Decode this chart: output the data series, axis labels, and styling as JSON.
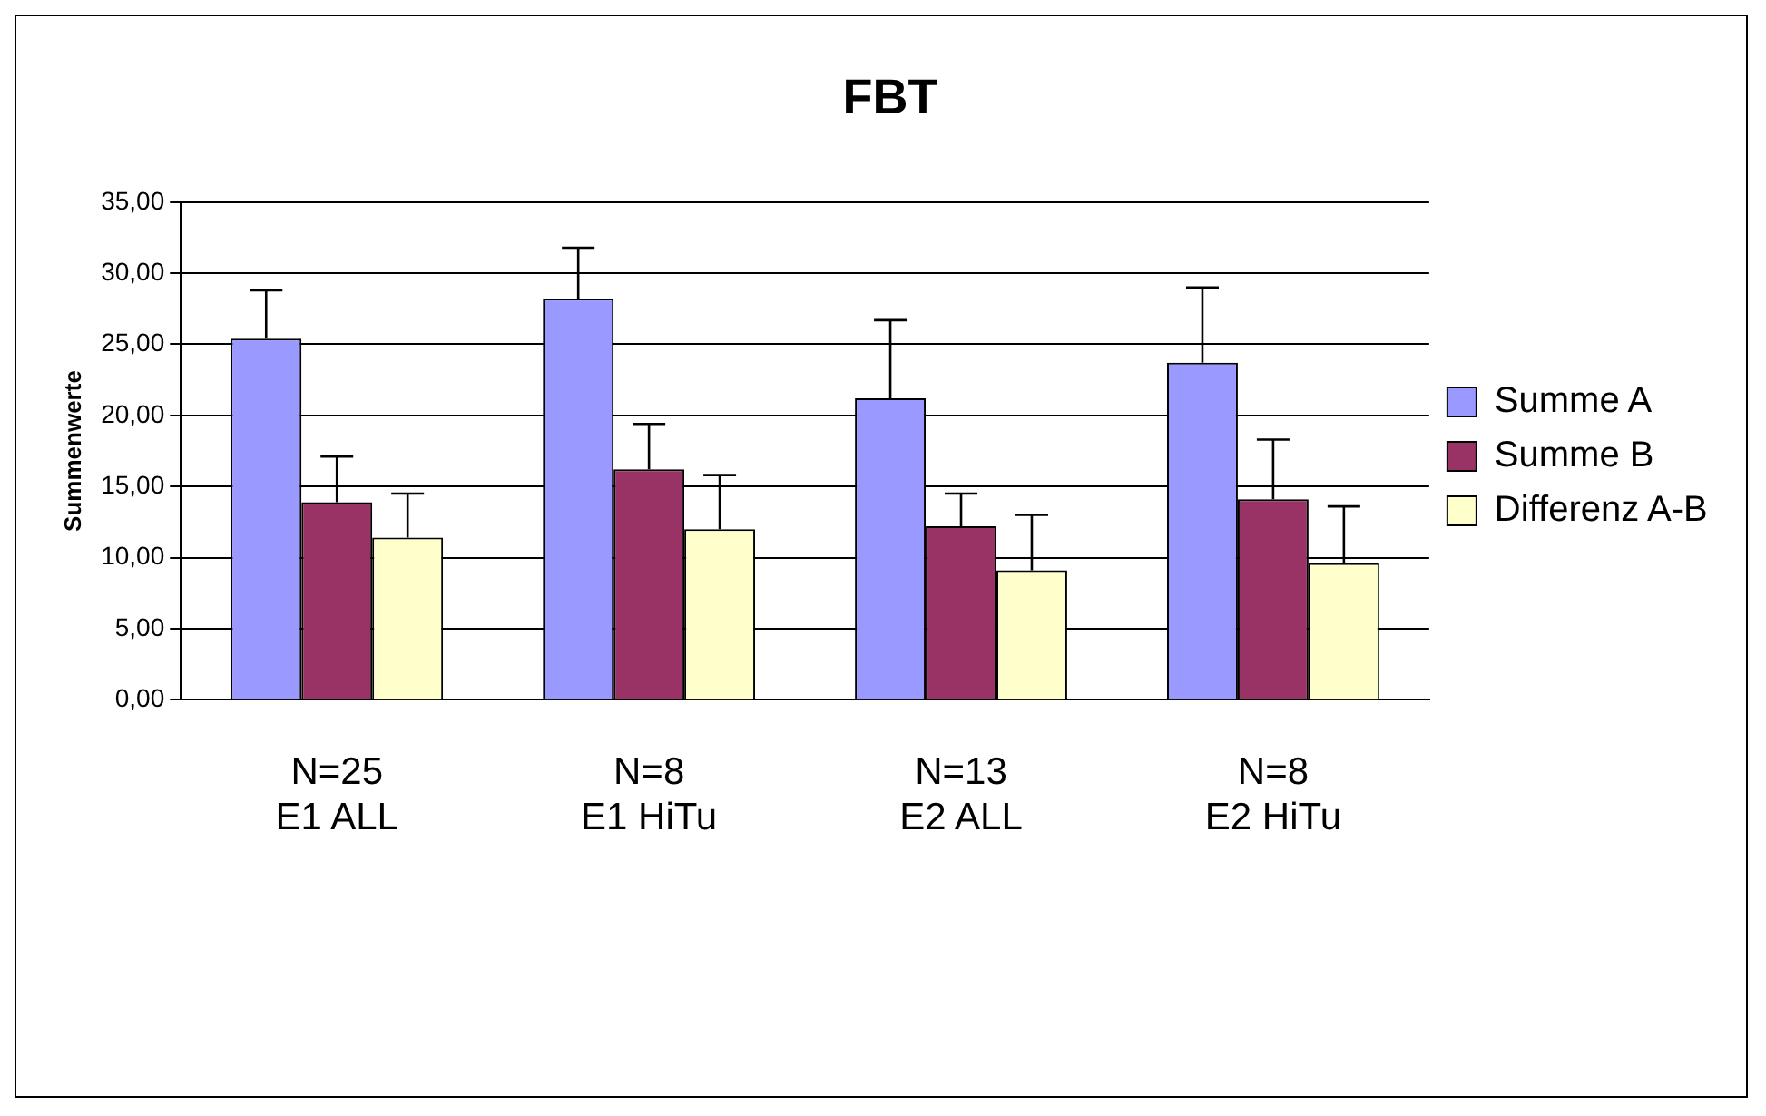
{
  "chart_data": {
    "type": "bar",
    "title": "FBT",
    "ylabel": "Summenwerte",
    "categories": [
      "N=25\nE1 ALL",
      "N=8\nE1 HiTu",
      "N=13\nE2 ALL",
      "N=8\nE2 HiTu"
    ],
    "series": [
      {
        "name": "Summe A",
        "color": "#9999ff",
        "values": [
          25.4,
          28.2,
          21.2,
          23.7
        ],
        "errors": [
          [
            25.4,
            28.8
          ],
          [
            28.2,
            31.8
          ],
          [
            21.2,
            26.7
          ],
          [
            23.7,
            29.0
          ]
        ]
      },
      {
        "name": "Summe B",
        "color": "#993366",
        "values": [
          13.9,
          16.2,
          12.2,
          14.1
        ],
        "errors": [
          [
            13.9,
            17.1
          ],
          [
            16.2,
            19.4
          ],
          [
            12.2,
            14.5
          ],
          [
            14.1,
            18.3
          ]
        ]
      },
      {
        "name": "Differenz A-B",
        "color": "#ffffcc",
        "values": [
          11.4,
          12.0,
          9.1,
          9.6
        ],
        "errors": [
          [
            11.4,
            14.5
          ],
          [
            12.0,
            15.8
          ],
          [
            9.1,
            13.0
          ],
          [
            9.6,
            13.6
          ]
        ]
      }
    ],
    "ylim": [
      0,
      35
    ],
    "yticks": [
      {
        "value": 0,
        "label": "0,00"
      },
      {
        "value": 5,
        "label": "5,00"
      },
      {
        "value": 10,
        "label": "10,00"
      },
      {
        "value": 15,
        "label": "15,00"
      },
      {
        "value": 20,
        "label": "20,00"
      },
      {
        "value": 25,
        "label": "25,00"
      },
      {
        "value": 30,
        "label": "30,00"
      },
      {
        "value": 35,
        "label": "35,00"
      }
    ],
    "grid": "y",
    "legend": "right"
  }
}
